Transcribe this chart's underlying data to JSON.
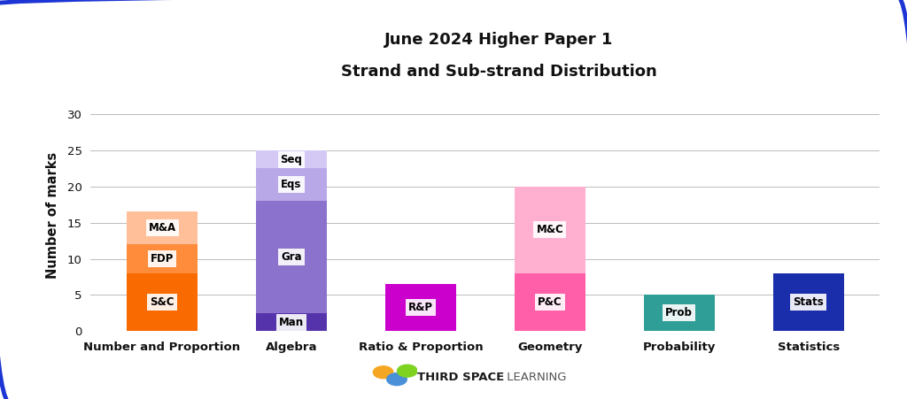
{
  "title_line1": "June 2024 Higher Paper 1",
  "title_line2": "Strand and Sub-strand Distribution",
  "ylabel": "Number of marks",
  "categories": [
    "Number and Proportion",
    "Algebra",
    "Ratio & Proportion",
    "Geometry",
    "Probability",
    "Statistics"
  ],
  "stacks": [
    {
      "label": "Number and Proportion",
      "segments": [
        {
          "name": "S&C",
          "value": 8,
          "color": "#F96A00"
        },
        {
          "name": "FDP",
          "value": 4,
          "color": "#FF8C3A"
        },
        {
          "name": "M&A",
          "value": 4.5,
          "color": "#FFBF99"
        }
      ]
    },
    {
      "label": "Algebra",
      "segments": [
        {
          "name": "Man",
          "value": 2.5,
          "color": "#5533AA"
        },
        {
          "name": "Gra",
          "value": 15.5,
          "color": "#8B72CC"
        },
        {
          "name": "Eqs",
          "value": 4.5,
          "color": "#B8A8E8"
        },
        {
          "name": "Seq",
          "value": 2.5,
          "color": "#D4C8F4"
        }
      ]
    },
    {
      "label": "Ratio & Proportion",
      "segments": [
        {
          "name": "R&P",
          "value": 6.5,
          "color": "#CC00CC"
        }
      ]
    },
    {
      "label": "Geometry",
      "segments": [
        {
          "name": "P&C",
          "value": 8,
          "color": "#FF5EA8"
        },
        {
          "name": "M&C",
          "value": 12,
          "color": "#FFB0D0"
        }
      ]
    },
    {
      "label": "Probability",
      "segments": [
        {
          "name": "Prob",
          "value": 5,
          "color": "#2E9E96"
        }
      ]
    },
    {
      "label": "Statistics",
      "segments": [
        {
          "name": "Stats",
          "value": 8,
          "color": "#1A2DAA"
        }
      ]
    }
  ],
  "ylim": [
    0,
    32
  ],
  "yticks": [
    0,
    5,
    10,
    15,
    20,
    25,
    30
  ],
  "background_color": "#FFFFFF",
  "border_color": "#1C35D4",
  "grid_color": "#BBBBBB",
  "label_fontsize": 8.5,
  "title_fontsize": 13,
  "axis_label_fontsize": 10.5,
  "tick_fontsize": 9.5,
  "bar_width": 0.55,
  "logo_bold": "THIRD SPACE",
  "logo_light": " LEARNING"
}
